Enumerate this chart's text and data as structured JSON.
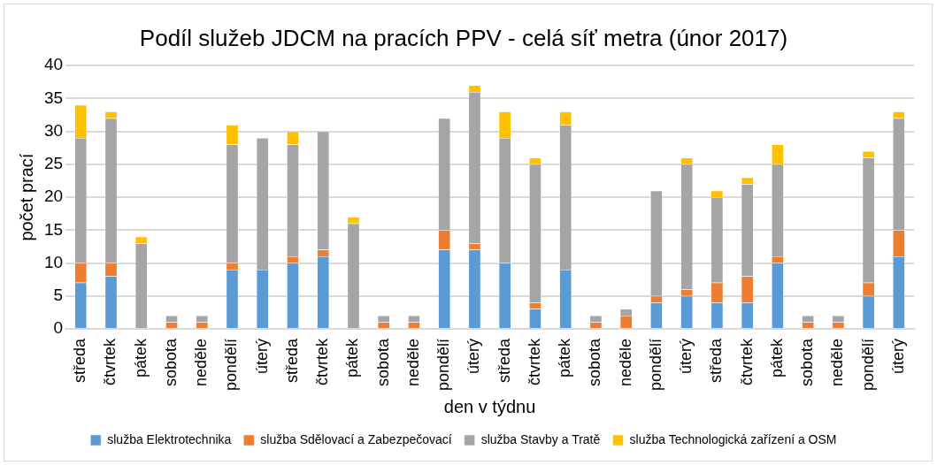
{
  "chart_data": {
    "type": "bar",
    "stacked": true,
    "title": "Podíl služeb JDCM na pracích PPV - celá síť metra (únor 2017)",
    "xlabel": "den v týdnu",
    "ylabel": "počet prací",
    "categories": [
      "středa",
      "čtvrtek",
      "pátek",
      "sobota",
      "neděle",
      "pondělí",
      "úterý",
      "středa",
      "čtvrtek",
      "pátek",
      "sobota",
      "neděle",
      "pondělí",
      "úterý",
      "středa",
      "čtvrtek",
      "pátek",
      "sobota",
      "neděle",
      "pondělí",
      "úterý",
      "středa",
      "čtvrtek",
      "pátek",
      "sobota",
      "neděle",
      "pondělí",
      "úterý"
    ],
    "series": [
      {
        "name": "služba Elektrotechnika",
        "color": "#5b9bd5",
        "values": [
          7,
          8,
          0,
          0,
          0,
          9,
          9,
          10,
          11,
          0,
          0,
          0,
          12,
          12,
          10,
          3,
          9,
          0,
          0,
          4,
          5,
          4,
          4,
          10,
          0,
          0,
          5,
          11
        ]
      },
      {
        "name": "služba Sdělovací a Zabezpečovací",
        "color": "#ed7d31",
        "values": [
          3,
          2,
          0,
          1,
          1,
          1,
          0,
          1,
          1,
          0,
          1,
          1,
          3,
          1,
          0,
          1,
          0,
          1,
          2,
          1,
          1,
          3,
          4,
          1,
          1,
          1,
          2,
          4
        ]
      },
      {
        "name": "služba Stavby a Tratě",
        "color": "#a5a5a5",
        "values": [
          19,
          22,
          13,
          1,
          1,
          18,
          20,
          17,
          18,
          16,
          1,
          1,
          17,
          23,
          19,
          21,
          22,
          1,
          1,
          16,
          19,
          13,
          14,
          14,
          1,
          1,
          19,
          17
        ]
      },
      {
        "name": "služba Technologická zařízení a OSM",
        "color": "#ffc000",
        "values": [
          5,
          1,
          1,
          0,
          0,
          3,
          0,
          2,
          0,
          1,
          0,
          0,
          0,
          1,
          4,
          1,
          2,
          0,
          0,
          0,
          1,
          1,
          1,
          3,
          0,
          0,
          1,
          1
        ]
      }
    ],
    "ylim": [
      0,
      40
    ],
    "yticks": [
      0,
      5,
      10,
      15,
      20,
      25,
      30,
      35,
      40
    ],
    "grid": "y",
    "legend": "bottom"
  }
}
